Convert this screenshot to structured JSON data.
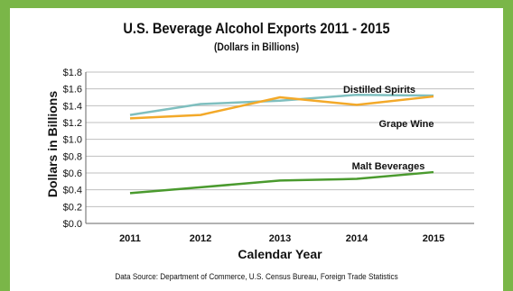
{
  "chart_data": {
    "type": "line",
    "title": "U.S. Beverage Alcohol Exports 2011 - 2015",
    "subtitle": "(Dollars in Billions)",
    "xlabel": "Calendar Year",
    "ylabel": "Dollars in Billions",
    "x": [
      "2011",
      "2012",
      "2013",
      "2014",
      "2015"
    ],
    "ylim": [
      0,
      1.8
    ],
    "yticks": [
      "$0.0",
      "$0.2",
      "$0.4",
      "$0.6",
      "$0.8",
      "$1.0",
      "$1.2",
      "$1.4",
      "$1.6",
      "$1.8"
    ],
    "grid": true,
    "series": [
      {
        "name": "Distilled Spirits",
        "values": [
          1.29,
          1.42,
          1.46,
          1.53,
          1.52
        ],
        "color": "#7fbfbf"
      },
      {
        "name": "Grape Wine",
        "values": [
          1.25,
          1.29,
          1.5,
          1.41,
          1.51
        ],
        "color": "#f3a929"
      },
      {
        "name": "Malt Beverages",
        "values": [
          0.36,
          0.43,
          0.51,
          0.53,
          0.61
        ],
        "color": "#4a9a2e"
      }
    ],
    "source": "Data Source: Department of Commerce, U.S. Census Bureau, Foreign Trade Statistics"
  },
  "colors": {
    "border": "#7ab648",
    "grid": "#bfbfbf",
    "axis": "#666666"
  }
}
